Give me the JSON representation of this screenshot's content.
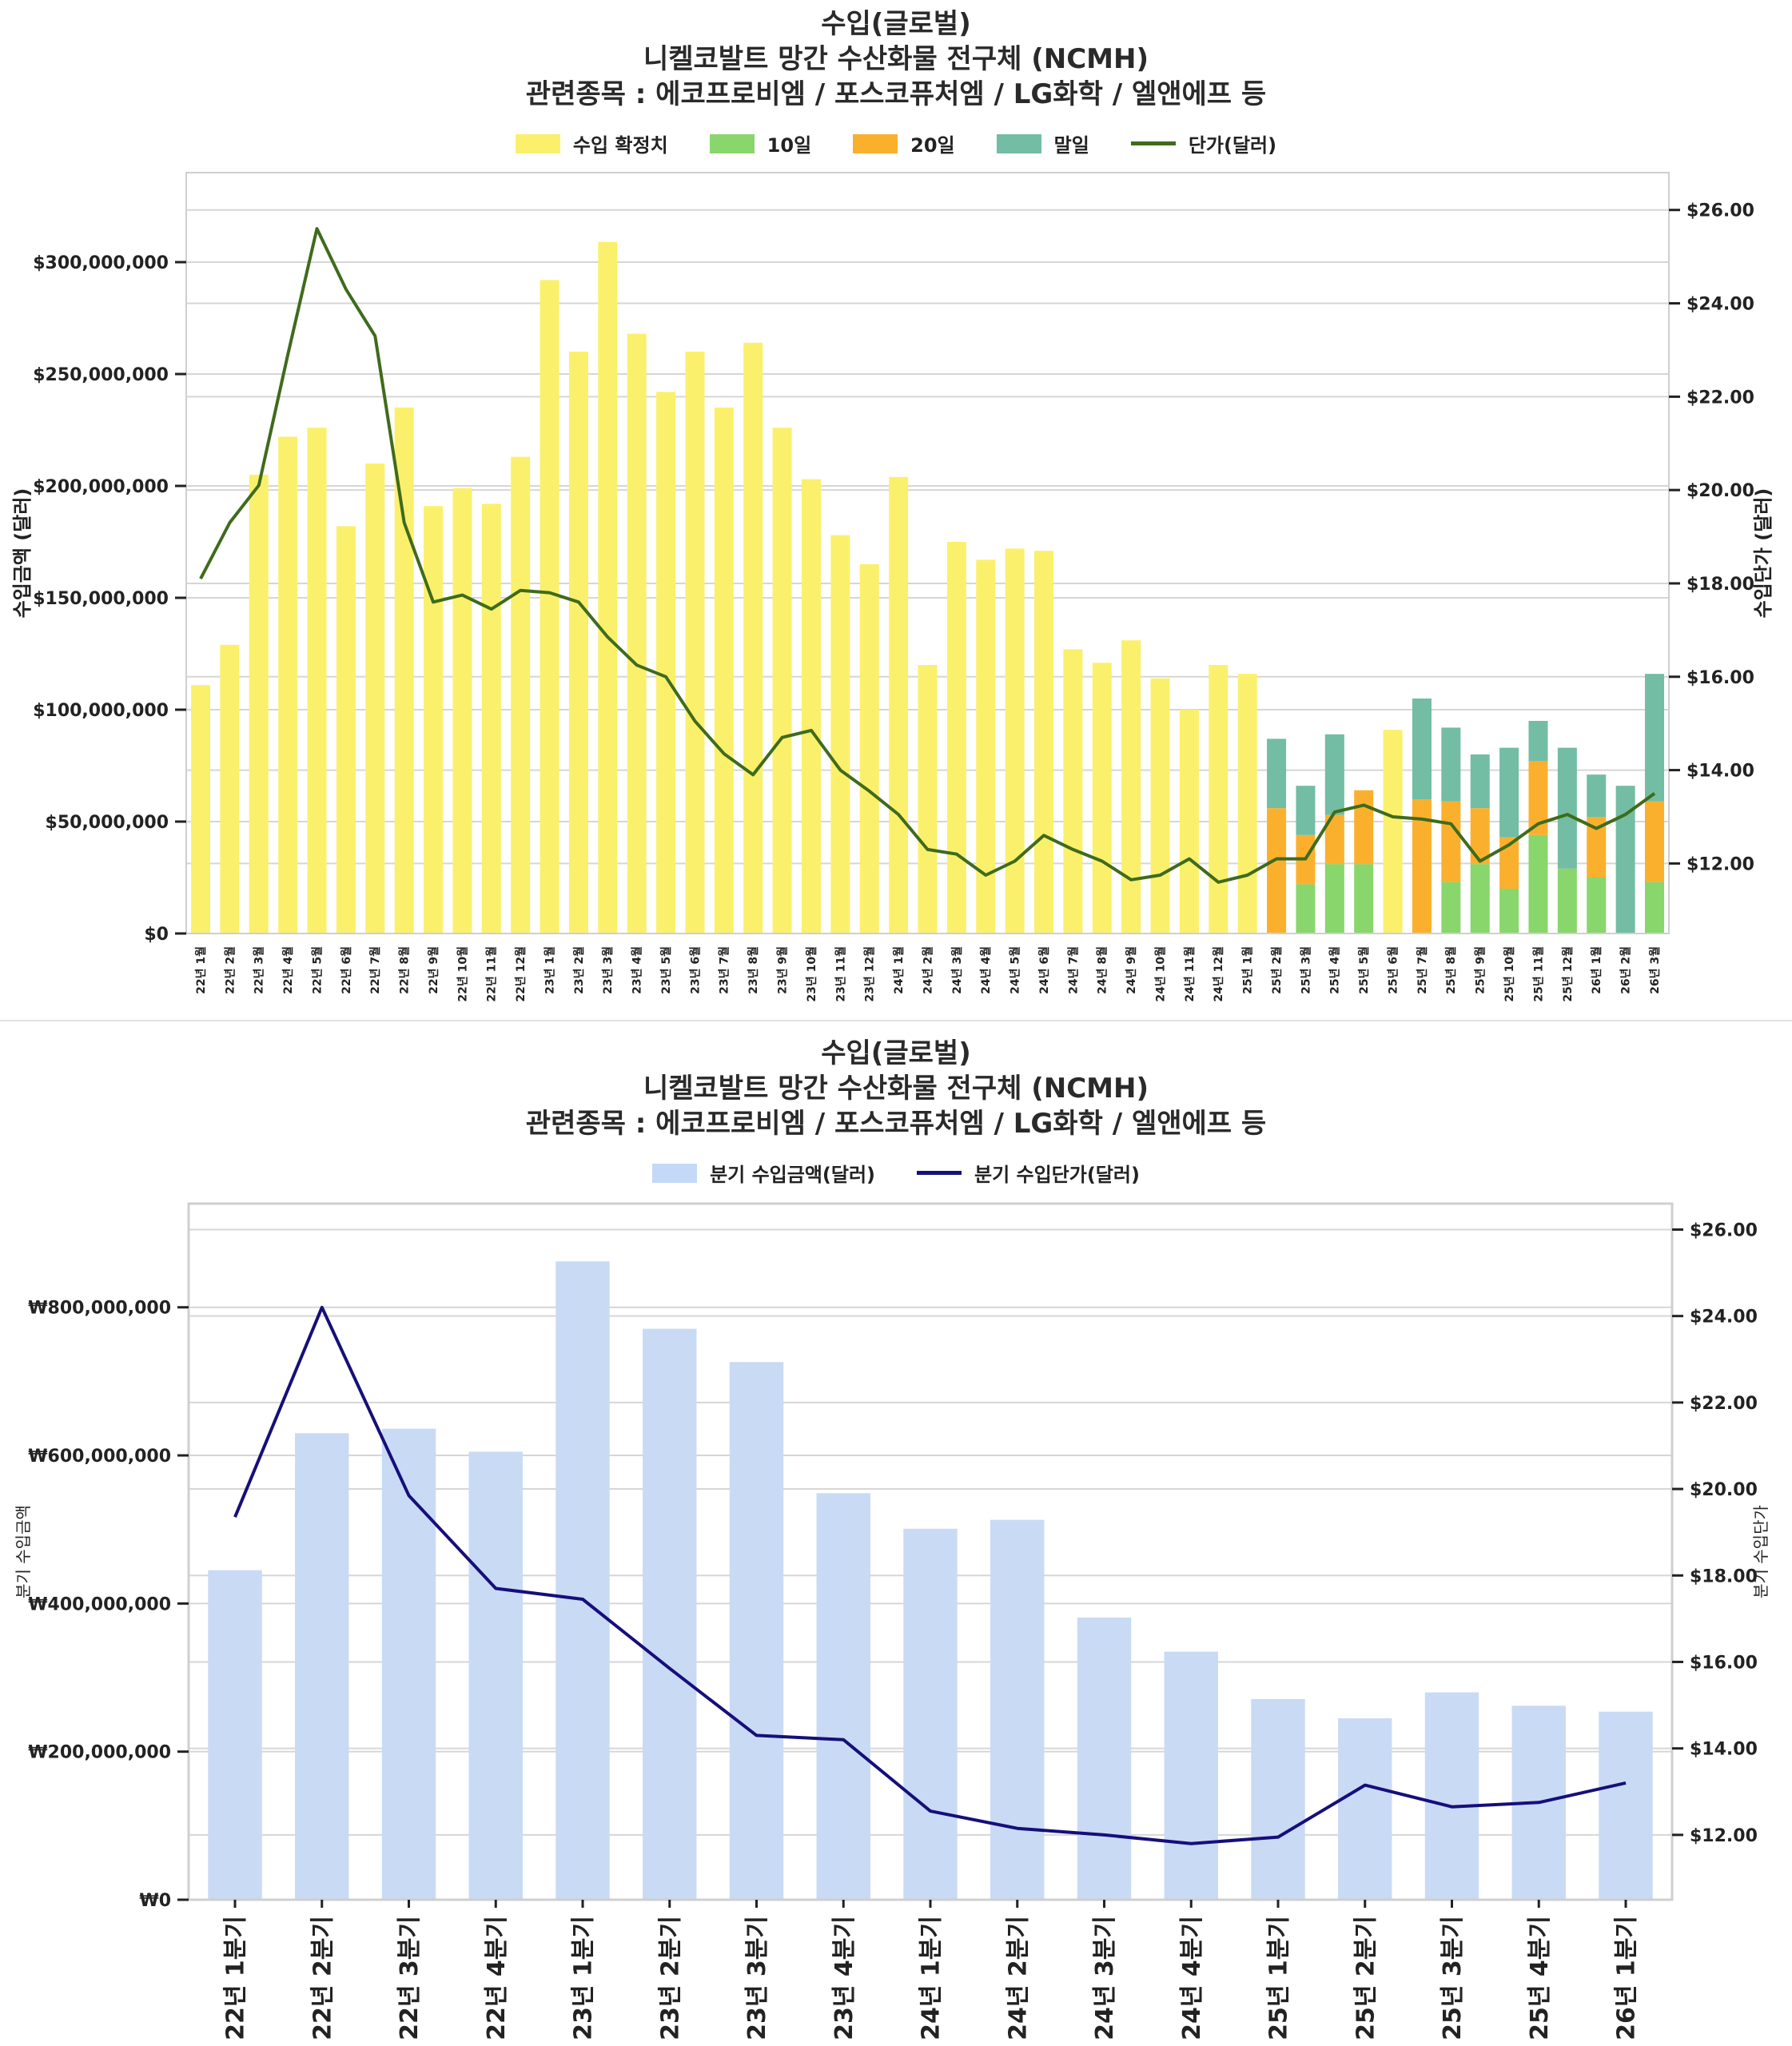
{
  "chart_data": [
    {
      "type": "bar",
      "stacked": true,
      "title": [
        "수입(글로벌)",
        "니켈코발트 망간 수산화물 전구체 (NCMH)",
        "관련종목 : 에코프로비엠 / 포스코퓨처엠 / LG화학 / 엘앤에프 등"
      ],
      "ylabel": "수입금액 (달러)",
      "y2label": "수입단가 (달러)",
      "ylim": [
        0,
        340000000
      ],
      "y2lim": [
        10.5,
        26.8
      ],
      "yticks": [
        "$0",
        "$50,000,000",
        "$100,000,000",
        "$150,000,000",
        "$200,000,000",
        "$250,000,000",
        "$300,000,000"
      ],
      "ytick_values": [
        0,
        50000000,
        100000000,
        150000000,
        200000000,
        250000000,
        300000000
      ],
      "y2ticks": [
        "$12.00",
        "$14.00",
        "$16.00",
        "$18.00",
        "$20.00",
        "$22.00",
        "$24.00",
        "$26.00"
      ],
      "y2tick_values": [
        12,
        14,
        16,
        18,
        20,
        22,
        24,
        26
      ],
      "grid": true,
      "legend_position": "top-center",
      "categories": [
        "22년 1월",
        "22년 2월",
        "22년 3월",
        "22년 4월",
        "22년 5월",
        "22년 6월",
        "22년 7월",
        "22년 8월",
        "22년 9월",
        "22년 10월",
        "22년 11월",
        "22년 12월",
        "23년 1월",
        "23년 2월",
        "23년 3월",
        "23년 4월",
        "23년 5월",
        "23년 6월",
        "23년 7월",
        "23년 8월",
        "23년 9월",
        "23년 10월",
        "23년 11월",
        "23년 12월",
        "24년 1월",
        "24년 2월",
        "24년 3월",
        "24년 4월",
        "24년 5월",
        "24년 6월",
        "24년 7월",
        "24년 8월",
        "24년 9월",
        "24년 10월",
        "24년 11월",
        "24년 12월",
        "25년 1월",
        "25년 2월",
        "25년 3월",
        "25년 4월",
        "25년 5월",
        "25년 6월",
        "25년 7월",
        "25년 8월",
        "25년 9월",
        "25년 10월",
        "25년 11월",
        "25년 12월",
        "26년 1월",
        "26년 2월",
        "26년 3월"
      ],
      "series": [
        {
          "name": "수입 확정치",
          "color": "#fbf06c",
          "kind": "bar",
          "values": [
            111000000,
            129000000,
            205000000,
            222000000,
            226000000,
            182000000,
            210000000,
            235000000,
            191000000,
            199000000,
            192000000,
            213000000,
            292000000,
            260000000,
            309000000,
            268000000,
            242000000,
            260000000,
            235000000,
            264000000,
            226000000,
            203000000,
            178000000,
            165000000,
            204000000,
            120000000,
            175000000,
            167000000,
            172000000,
            171000000,
            127000000,
            121000000,
            131000000,
            114000000,
            100000000,
            120000000,
            116000000,
            0,
            0,
            0,
            0,
            91000000,
            0,
            0,
            0,
            0,
            0,
            0,
            0,
            0,
            0
          ]
        },
        {
          "name": "10일",
          "color": "#88d66c",
          "kind": "bar",
          "values": [
            0,
            0,
            0,
            0,
            0,
            0,
            0,
            0,
            0,
            0,
            0,
            0,
            0,
            0,
            0,
            0,
            0,
            0,
            0,
            0,
            0,
            0,
            0,
            0,
            0,
            0,
            0,
            0,
            0,
            0,
            0,
            0,
            0,
            0,
            0,
            0,
            0,
            0,
            22000000,
            31000000,
            31000000,
            0,
            0,
            23000000,
            31000000,
            20000000,
            44000000,
            29000000,
            25000000,
            0,
            23000000
          ]
        },
        {
          "name": "20일",
          "color": "#fbb02d",
          "kind": "bar",
          "values": [
            0,
            0,
            0,
            0,
            0,
            0,
            0,
            0,
            0,
            0,
            0,
            0,
            0,
            0,
            0,
            0,
            0,
            0,
            0,
            0,
            0,
            0,
            0,
            0,
            0,
            0,
            0,
            0,
            0,
            0,
            0,
            0,
            0,
            0,
            0,
            0,
            0,
            56000000,
            22000000,
            22000000,
            33000000,
            0,
            60000000,
            36000000,
            25000000,
            23000000,
            33000000,
            0,
            27000000,
            0,
            36000000
          ]
        },
        {
          "name": "말일",
          "color": "#72bda3",
          "kind": "bar",
          "values": [
            0,
            0,
            0,
            0,
            0,
            0,
            0,
            0,
            0,
            0,
            0,
            0,
            0,
            0,
            0,
            0,
            0,
            0,
            0,
            0,
            0,
            0,
            0,
            0,
            0,
            0,
            0,
            0,
            0,
            0,
            0,
            0,
            0,
            0,
            0,
            0,
            0,
            31000000,
            22000000,
            36000000,
            0,
            0,
            45000000,
            33000000,
            24000000,
            40000000,
            18000000,
            54000000,
            19000000,
            66000000,
            57000000
          ]
        },
        {
          "name": "단가(달러)",
          "color": "#3f6b1c",
          "kind": "line",
          "axis": "right",
          "values": [
            18.1,
            19.3,
            20.1,
            22.9,
            25.6,
            24.3,
            23.3,
            19.3,
            17.6,
            17.75,
            17.45,
            17.85,
            17.8,
            17.6,
            16.85,
            16.25,
            16.0,
            15.05,
            14.35,
            13.9,
            14.7,
            14.85,
            14.0,
            13.55,
            13.05,
            12.3,
            12.2,
            11.75,
            12.05,
            12.6,
            12.3,
            12.05,
            11.65,
            11.75,
            12.1,
            11.6,
            11.75,
            12.1,
            12.1,
            13.1,
            13.25,
            13.0,
            12.95,
            12.85,
            12.05,
            12.4,
            12.85,
            13.05,
            12.75,
            13.05,
            13.5
          ]
        }
      ]
    },
    {
      "type": "bar",
      "title": [
        "수입(글로벌)",
        "니켈코발트 망간 수산화물 전구체 (NCMH)",
        "관련종목 : 에코프로비엠 / 포스코퓨처엠 / LG화학 / 엘앤에프 등"
      ],
      "ylabel": "분기 수입금액",
      "y2label": "분기 수입단가",
      "ylim": [
        0,
        940000000
      ],
      "y2lim": [
        10.5,
        26.6
      ],
      "yticks": [
        "₩0",
        "₩200,000,000",
        "₩400,000,000",
        "₩600,000,000",
        "₩800,000,000"
      ],
      "ytick_values": [
        0,
        200000000,
        400000000,
        600000000,
        800000000
      ],
      "y2ticks": [
        "$12.00",
        "$14.00",
        "$16.00",
        "$18.00",
        "$20.00",
        "$22.00",
        "$24.00",
        "$26.00"
      ],
      "y2tick_values": [
        12,
        14,
        16,
        18,
        20,
        22,
        24,
        26
      ],
      "grid": true,
      "legend_position": "top-center",
      "categories": [
        "22년 1분기",
        "22년 2분기",
        "22년 3분기",
        "22년 4분기",
        "23년 1분기",
        "23년 2분기",
        "23년 3분기",
        "23년 4분기",
        "24년 1분기",
        "24년 2분기",
        "24년 3분기",
        "24년 4분기",
        "25년 1분기",
        "25년 2분기",
        "25년 3분기",
        "25년 4분기",
        "26년 1분기"
      ],
      "series": [
        {
          "name": "분기 수입금액(달러)",
          "color": "#c9daf5",
          "kind": "bar",
          "values": [
            445000000,
            630000000,
            636000000,
            605000000,
            862000000,
            771000000,
            726000000,
            549000000,
            501000000,
            513000000,
            381000000,
            335000000,
            271000000,
            245000000,
            280000000,
            262000000,
            254000000
          ]
        },
        {
          "name": "분기 수입단가(달러)",
          "color": "#160f7a",
          "kind": "line",
          "axis": "right",
          "values": [
            19.35,
            24.2,
            19.85,
            17.7,
            17.45,
            15.85,
            14.3,
            14.2,
            12.55,
            12.15,
            12.0,
            11.8,
            11.95,
            13.15,
            12.65,
            12.75,
            13.2
          ]
        }
      ]
    }
  ]
}
